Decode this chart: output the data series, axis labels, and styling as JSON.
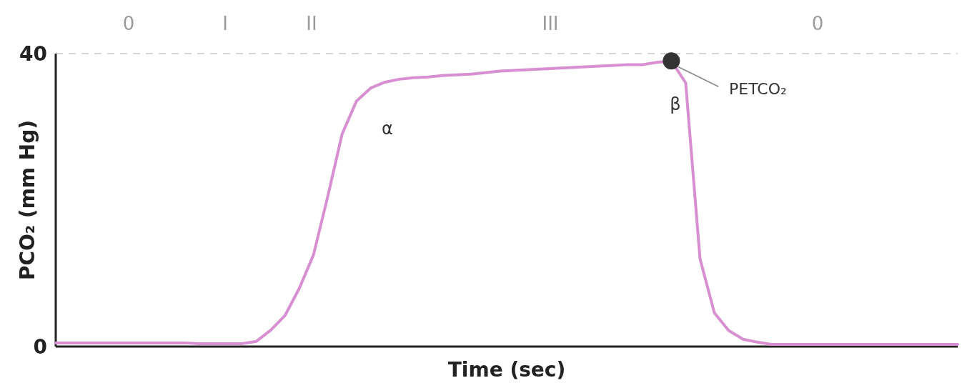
{
  "chart_data": {
    "type": "line",
    "xlabel": "Time (sec)",
    "ylabel": "PCO₂ (mm Hg)",
    "categories": [
      null,
      null,
      null,
      null,
      null,
      null,
      null,
      null,
      null,
      null,
      null,
      null,
      null,
      null,
      null,
      null,
      null,
      null,
      null,
      null,
      null,
      null,
      null,
      null,
      null,
      null,
      null,
      null,
      null,
      null,
      null,
      null,
      null,
      null,
      null,
      null,
      null,
      null,
      null,
      null,
      null,
      null,
      null,
      null,
      null,
      null,
      null,
      null,
      null,
      null,
      null,
      null,
      null,
      null,
      null,
      null,
      null,
      null,
      null,
      null,
      null,
      null,
      null,
      null
    ],
    "ylim": [
      0,
      40
    ],
    "yticks": [
      0,
      40
    ],
    "tick_labels": "y",
    "series": [
      {
        "color": "#d88fd2",
        "line_style": "solid",
        "values": [
          0.5,
          0.5,
          0.5,
          0.5,
          0.5,
          0.5,
          0.5,
          0.5,
          0.5,
          0.5,
          0.4,
          0.4,
          0.4,
          0.4,
          0.7,
          2.2,
          4.2,
          7.9,
          12.5,
          20.5,
          29,
          33.5,
          35.3,
          36.1,
          36.5,
          36.7,
          36.8,
          37,
          37.1,
          37.2,
          37.4,
          37.6,
          37.7,
          37.8,
          37.9,
          38,
          38.1,
          38.2,
          38.3,
          38.4,
          38.5,
          38.5,
          38.8,
          39,
          36,
          12,
          4.6,
          2.2,
          1,
          0.6,
          0.3,
          0.3,
          0.3,
          0.3,
          0.3,
          0.3,
          0.3,
          0.3,
          0.3,
          0.3,
          0.3,
          0.3,
          0.3,
          0.3
        ]
      }
    ],
    "ref_lines": [
      {
        "axis": "y",
        "value": 40,
        "color": "#c8c8c8",
        "line_style": "dashed"
      }
    ],
    "annotations": [
      "0",
      "I",
      "II",
      "III",
      "0",
      "PETCO₂",
      "α",
      "β"
    ]
  }
}
